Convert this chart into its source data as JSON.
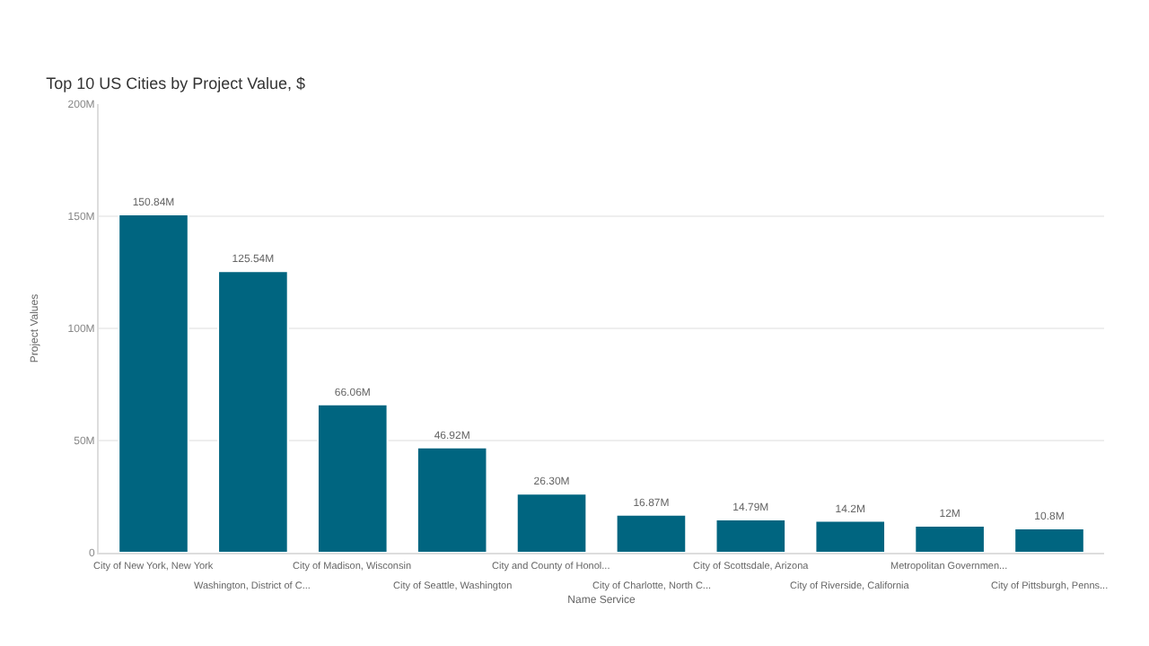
{
  "chart_data": {
    "type": "bar",
    "title": "Top 10 US Cities by Project Value, $",
    "xlabel": "Name Service",
    "ylabel": "Project Values",
    "categories": [
      "City of New York, New York",
      "Washington, District of C...",
      "City of Madison, Wisconsin",
      "City of Seattle, Washington",
      "City and County of Honol...",
      "City of Charlotte, North C...",
      "City of Scottsdale, Arizona",
      "City of Riverside, California",
      "Metropolitan Governmen...",
      "City of Pittsburgh, Penns..."
    ],
    "values": [
      150.84,
      125.54,
      66.06,
      46.92,
      26.3,
      16.87,
      14.79,
      14.2,
      12,
      10.8
    ],
    "value_labels": [
      "150.84M",
      "125.54M",
      "66.06M",
      "46.92M",
      "26.30M",
      "16.87M",
      "14.79M",
      "14.2M",
      "12M",
      "10.8M"
    ],
    "color": "#006580",
    "ylim": [
      0,
      200
    ],
    "yticks": [
      0,
      {
        "value": 50,
        "label": "50M"
      },
      {
        "value": 100,
        "label": "100M"
      },
      {
        "value": 150,
        "label": "150M"
      },
      {
        "value": 200,
        "label": "200M"
      }
    ],
    "grid": "y",
    "legend": false
  }
}
